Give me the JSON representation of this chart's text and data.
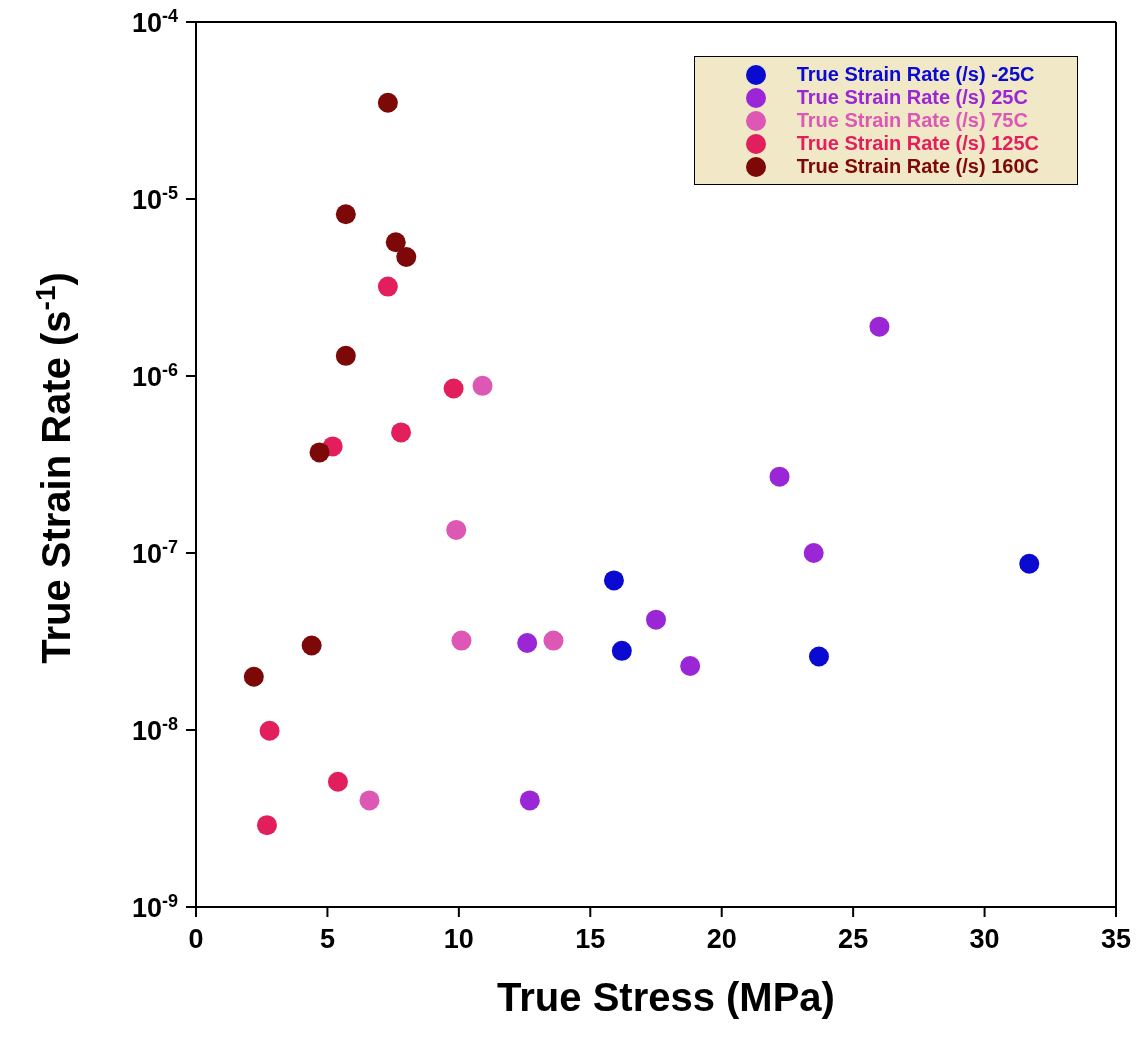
{
  "chart_data": {
    "type": "scatter",
    "xlabel": "True Stress (MPa)",
    "ylabel": "True Strain Rate (s$^{-1}$)",
    "log": "y",
    "grid": false,
    "legend": "top right",
    "marker": "circle",
    "xlim": [
      0,
      35
    ],
    "xticks": [
      0,
      5,
      10,
      15,
      20,
      25,
      30,
      35
    ],
    "ylim": [
      1e-09,
      0.0001
    ],
    "yticks": [
      {
        "value": 1e-09,
        "label": "10$^{-9}$"
      },
      {
        "value": 1e-08,
        "label": "10$^{-8}$"
      },
      {
        "value": 1e-07,
        "label": "10$^{-7}$"
      },
      {
        "value": 1e-06,
        "label": "10$^{-6}$"
      },
      {
        "value": 1e-05,
        "label": "10$^{-5}$"
      },
      {
        "value": 0.0001,
        "label": "10$^{-4}$"
      }
    ],
    "series": [
      {
        "name": "True Strain Rate (/s) -25C",
        "color": "#0a0ad0",
        "x": [
          15.9,
          16.2,
          23.7,
          31.7
        ],
        "values": [
          7e-08,
          2.8e-08,
          2.6e-08,
          8.7e-08
        ]
      },
      {
        "name": "True Strain Rate (/s) 25C",
        "color": "#9b26d6",
        "x": [
          26.0,
          22.2,
          23.5,
          17.5,
          18.8,
          12.6,
          12.7
        ],
        "values": [
          1.9e-06,
          2.7e-07,
          1e-07,
          4.2e-08,
          2.3e-08,
          3.1e-08,
          4e-09
        ]
      },
      {
        "name": "True Strain Rate (/s) 75C",
        "color": "#dc58b4",
        "x": [
          10.9,
          9.9,
          10.1,
          13.6,
          6.6
        ],
        "values": [
          8.8e-07,
          1.35e-07,
          3.2e-08,
          3.2e-08,
          4e-09
        ]
      },
      {
        "name": "True Strain Rate (/s) 125C",
        "color": "#e21f5c",
        "x": [
          7.3,
          9.8,
          7.8,
          5.2,
          2.8,
          5.4,
          2.7
        ],
        "values": [
          3.2e-06,
          8.5e-07,
          4.8e-07,
          4e-07,
          9.9e-09,
          5.1e-09,
          2.9e-09
        ]
      },
      {
        "name": "True Strain Rate (/s) 160C",
        "color": "#7d0808",
        "x": [
          7.3,
          5.7,
          7.6,
          8.0,
          5.7,
          4.7,
          4.4,
          2.2
        ],
        "values": [
          3.5e-05,
          8.2e-06,
          5.7e-06,
          4.7e-06,
          1.3e-06,
          3.7e-07,
          3e-08,
          2e-08
        ]
      }
    ]
  }
}
